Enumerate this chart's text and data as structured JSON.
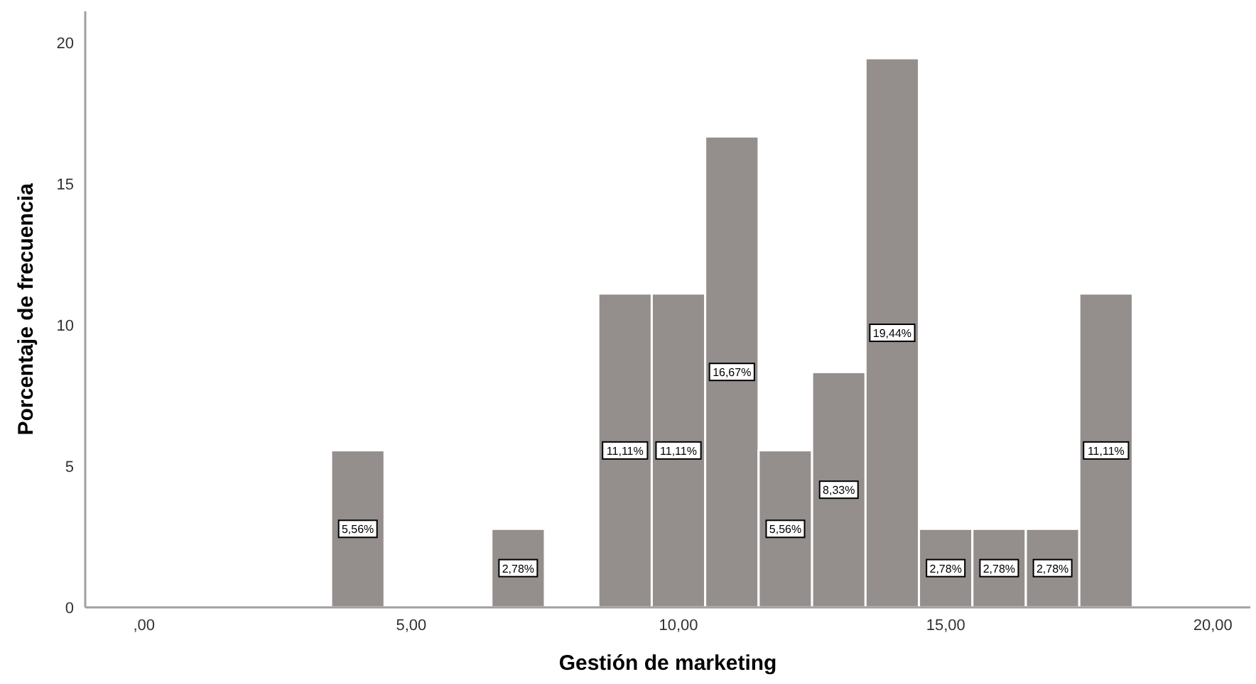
{
  "chart_data": {
    "type": "histogram",
    "xlabel": "Gestión de marketing",
    "ylabel": "Porcentaje de frecuencia",
    "bins": [
      3.5,
      4.5,
      5.5,
      6.5,
      7.5,
      8.5,
      9.5,
      10.5,
      11.5,
      12.5,
      13.5,
      14.5,
      15.5,
      16.5,
      17.5,
      18.5
    ],
    "values": [
      5.56,
      0,
      0,
      2.78,
      0,
      11.11,
      11.11,
      16.67,
      5.56,
      8.33,
      19.44,
      2.78,
      2.78,
      2.78,
      11.11
    ],
    "value_labels": [
      "5,56%",
      null,
      null,
      "2,78%",
      null,
      "11,11%",
      "11,11%",
      "16,67%",
      "5,56%",
      "8,33%",
      "19,44%",
      "2,78%",
      "2,78%",
      "2,78%",
      "11,11%"
    ],
    "color": "#948f8d",
    "xlim": [
      -1.1,
      20.7
    ],
    "xticks": [
      {
        "value": 0,
        "label": ",00"
      },
      {
        "value": 5,
        "label": "5,00"
      },
      {
        "value": 10,
        "label": "10,00"
      },
      {
        "value": 15,
        "label": "15,00"
      },
      {
        "value": 20,
        "label": "20,00"
      }
    ],
    "ylim": [
      0,
      21.1
    ],
    "yticks": [
      0,
      5,
      10,
      15,
      20
    ],
    "grid": false
  }
}
